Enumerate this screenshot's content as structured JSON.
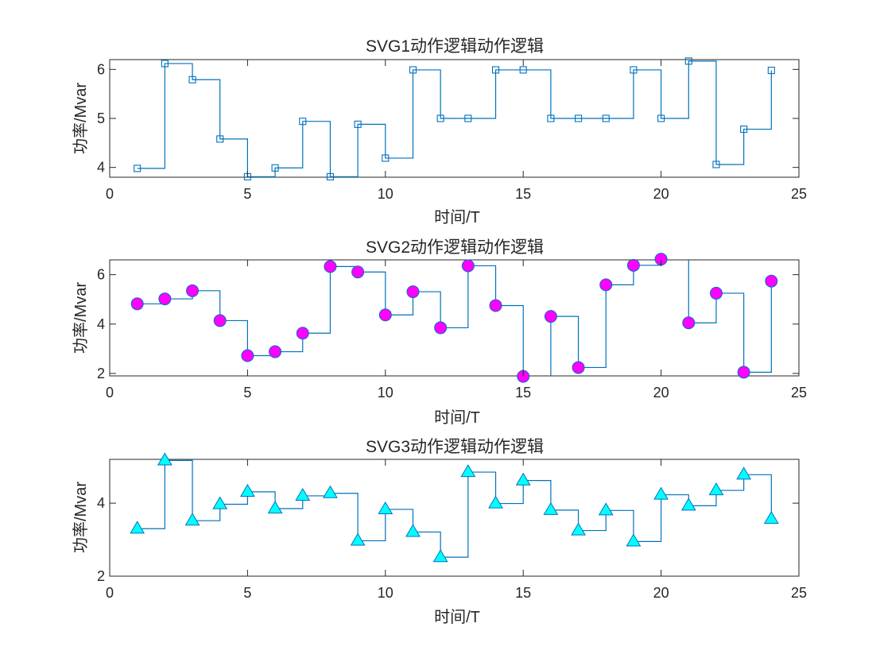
{
  "chart_data": [
    {
      "type": "line",
      "style": "stairs",
      "title": "SVG1动作逻辑动作逻辑",
      "xlabel": "时间/T",
      "ylabel": "功率/Mvar",
      "xlim": [
        0,
        25
      ],
      "ylim": [
        3.8,
        6.2
      ],
      "xticks": [
        0,
        5,
        10,
        15,
        20,
        25
      ],
      "yticks": [
        4,
        5,
        6
      ],
      "marker": "square",
      "color": "#0072BD",
      "marker_fill": "none",
      "x": [
        1,
        2,
        3,
        4,
        5,
        6,
        7,
        8,
        9,
        10,
        11,
        12,
        13,
        14,
        15,
        16,
        17,
        18,
        19,
        20,
        21,
        22,
        23,
        24
      ],
      "values": [
        3.98,
        6.12,
        5.79,
        4.58,
        3.81,
        3.99,
        4.94,
        3.81,
        4.88,
        4.19,
        5.99,
        5.0,
        5.0,
        5.99,
        5.99,
        5.0,
        5.0,
        5.0,
        5.99,
        5.0,
        6.17,
        4.06,
        4.78,
        5.98
      ]
    },
    {
      "type": "line",
      "style": "stairs",
      "title": "SVG2动作逻辑动作逻辑",
      "xlabel": "时间/T",
      "ylabel": "功率/Mvar",
      "xlim": [
        0,
        25
      ],
      "ylim": [
        1.9,
        6.6
      ],
      "xticks": [
        0,
        5,
        10,
        15,
        20,
        25
      ],
      "yticks": [
        2,
        4,
        6
      ],
      "marker": "circle",
      "color": "#0072BD",
      "marker_fill": "#FF00FF",
      "x": [
        1,
        2,
        3,
        4,
        5,
        6,
        7,
        8,
        9,
        10,
        11,
        12,
        13,
        14,
        15,
        16,
        17,
        18,
        19,
        20,
        21,
        22,
        23,
        24
      ],
      "values": [
        4.82,
        5.02,
        5.35,
        4.14,
        2.72,
        2.88,
        3.63,
        6.33,
        6.11,
        4.37,
        5.31,
        3.85,
        6.36,
        4.75,
        1.88,
        4.31,
        2.24,
        5.59,
        6.38,
        6.63,
        4.05,
        5.25,
        2.05,
        5.74
      ]
    },
    {
      "type": "line",
      "style": "stairs",
      "title": "SVG3动作逻辑动作逻辑",
      "xlabel": "时间/T",
      "ylabel": "功率/Mvar",
      "xlim": [
        0,
        25
      ],
      "ylim": [
        2.0,
        5.2
      ],
      "xticks": [
        0,
        5,
        10,
        15,
        20,
        25
      ],
      "yticks": [
        2,
        4
      ],
      "marker": "triangle",
      "color": "#0072BD",
      "marker_fill": "#00FFFF",
      "x": [
        1,
        2,
        3,
        4,
        5,
        6,
        7,
        8,
        9,
        10,
        11,
        12,
        13,
        14,
        15,
        16,
        17,
        18,
        19,
        20,
        21,
        22,
        23,
        24
      ],
      "values": [
        3.3,
        5.17,
        3.52,
        3.97,
        4.31,
        3.85,
        4.2,
        4.27,
        2.97,
        3.83,
        3.21,
        2.52,
        4.85,
        3.99,
        4.62,
        3.81,
        3.25,
        3.8,
        2.95,
        4.23,
        3.93,
        4.35,
        4.78,
        3.57
      ]
    }
  ]
}
